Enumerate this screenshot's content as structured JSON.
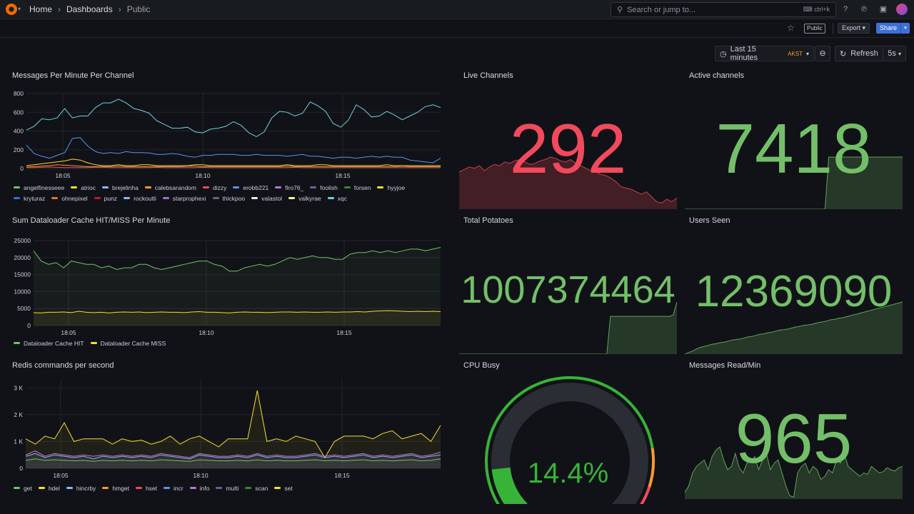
{
  "nav": {
    "breadcrumbs": [
      "Home",
      "Dashboards",
      "Public"
    ],
    "search_placeholder": "Search or jump to...",
    "search_shortcut": "ctrl+k"
  },
  "toolbar": {
    "public_badge": "Public",
    "export_label": "Export",
    "share_label": "Share"
  },
  "time": {
    "range": "Last 15 minutes",
    "tz": "AKST",
    "refresh_label": "Refresh",
    "interval": "5s"
  },
  "colors": {
    "green": "#73bf69",
    "red": "#f2495c",
    "yellow": "#fade2a",
    "blue": "#5794f2",
    "orange": "#ff9830",
    "purple": "#b877d9",
    "cyan": "#8ab8ff"
  },
  "panels": {
    "messages": {
      "title": "Messages Per Minute Per Channel",
      "legend": [
        {
          "name": "angelfinesseee",
          "color": "#73bf69"
        },
        {
          "name": "atrioc",
          "color": "#fade2a"
        },
        {
          "name": "brejelinha",
          "color": "#8ab8ff"
        },
        {
          "name": "calebsarandom",
          "color": "#ff9830"
        },
        {
          "name": "dizzy",
          "color": "#f2495c"
        },
        {
          "name": "erobb221",
          "color": "#5794f2"
        },
        {
          "name": "firo76_",
          "color": "#b877d9"
        },
        {
          "name": "foolish",
          "color": "#705da0"
        },
        {
          "name": "forsen",
          "color": "#37872d"
        },
        {
          "name": "hyyjoe",
          "color": "#fade2a"
        },
        {
          "name": "kryturaz",
          "color": "#3274d9"
        },
        {
          "name": "ohnepixel",
          "color": "#e0752d"
        },
        {
          "name": "punz",
          "color": "#c4162a"
        },
        {
          "name": "rockoutli",
          "color": "#8ab8ff"
        },
        {
          "name": "starprophexi",
          "color": "#a16ddb"
        },
        {
          "name": "thickpoo",
          "color": "#5f6b81"
        },
        {
          "name": "valastol",
          "color": "#e9e9f0"
        },
        {
          "name": "valkyrae",
          "color": "#fff899"
        },
        {
          "name": "xqc",
          "color": "#6ed0e0"
        }
      ]
    },
    "dataloader": {
      "title": "Sum Dataloader Cache HIT/MISS Per Minute",
      "legend": [
        {
          "name": "Dataloader Cache HIT",
          "color": "#73bf69"
        },
        {
          "name": "Dataloader Cache MISS",
          "color": "#fade2a"
        }
      ]
    },
    "redis": {
      "title": "Redis commands per second",
      "legend": [
        {
          "name": "get",
          "color": "#73bf69"
        },
        {
          "name": "hdel",
          "color": "#fade2a"
        },
        {
          "name": "hincrby",
          "color": "#8ab8ff"
        },
        {
          "name": "hmget",
          "color": "#ff9830"
        },
        {
          "name": "hset",
          "color": "#f2495c"
        },
        {
          "name": "incr",
          "color": "#5794f2"
        },
        {
          "name": "info",
          "color": "#b877d9"
        },
        {
          "name": "multi",
          "color": "#705da0"
        },
        {
          "name": "scan",
          "color": "#37872d"
        },
        {
          "name": "set",
          "color": "#fade2a"
        }
      ]
    },
    "live_channels": {
      "title": "Live Channels",
      "value": "292",
      "color": "#f2495c"
    },
    "active_channels": {
      "title": "Active channels",
      "value": "7418",
      "color": "#73bf69"
    },
    "total_potatoes": {
      "title": "Total Potatoes",
      "value": "1007374464",
      "color": "#73bf69"
    },
    "users_seen": {
      "title": "Users Seen",
      "value": "12369090",
      "color": "#73bf69"
    },
    "cpu_busy": {
      "title": "CPU Busy",
      "value": "14.4%",
      "percent": 14.4,
      "color": "#37b337"
    },
    "messages_read": {
      "title": "Messages Read/Min",
      "value": "965",
      "color": "#73bf69"
    }
  },
  "chart_data": [
    {
      "type": "line",
      "title": "Messages Per Minute Per Channel",
      "x_ticks": [
        "18:05",
        "18:10",
        "18:15"
      ],
      "y_ticks": [
        "0",
        "200",
        "400",
        "600",
        "800"
      ],
      "ylim": [
        0,
        800
      ],
      "series": [
        {
          "name": "xqc",
          "color": "#6ed0e0",
          "values": [
            410,
            450,
            530,
            520,
            540,
            640,
            540,
            560,
            560,
            650,
            700,
            700,
            740,
            700,
            640,
            620,
            590,
            510,
            470,
            430,
            430,
            440,
            390,
            380,
            420,
            430,
            450,
            500,
            460,
            380,
            340,
            390,
            540,
            610,
            600,
            560,
            590,
            710,
            670,
            610,
            480,
            440,
            520,
            680,
            630,
            550,
            560,
            610,
            570,
            520,
            560,
            600,
            660,
            680,
            650
          ]
        },
        {
          "name": "erobb221",
          "color": "#5794f2",
          "values": [
            250,
            160,
            130,
            110,
            140,
            170,
            320,
            330,
            240,
            180,
            160,
            170,
            160,
            180,
            170,
            170,
            165,
            150,
            150,
            160,
            150,
            130,
            120,
            140,
            140,
            150,
            150,
            150,
            140,
            140,
            150,
            140,
            140,
            140,
            130,
            140,
            150,
            130,
            130,
            120,
            110,
            120,
            120,
            110,
            120,
            130,
            120,
            130,
            120,
            120,
            90,
            80,
            70,
            60,
            110
          ]
        },
        {
          "name": "atrioc",
          "color": "#fade2a",
          "values": [
            30,
            40,
            50,
            60,
            70,
            80,
            100,
            90,
            60,
            40,
            30,
            30,
            40,
            30,
            30,
            40,
            40,
            30,
            30,
            30,
            30,
            30,
            40,
            40,
            30,
            30,
            30,
            30,
            30,
            30,
            30,
            30,
            30,
            30,
            40,
            30,
            30,
            30,
            40,
            40,
            30,
            30,
            30,
            30,
            30,
            30,
            30,
            40,
            30,
            30,
            30,
            30,
            30,
            30,
            30
          ]
        },
        {
          "name": "calebsarandom",
          "color": "#ff9830",
          "values": [
            15,
            20,
            25,
            30,
            40,
            35,
            30,
            25,
            20,
            20,
            20,
            20,
            25,
            20,
            20,
            20,
            20,
            20,
            20,
            20,
            20,
            25,
            25,
            20,
            20,
            20,
            20,
            20,
            20,
            20,
            20,
            20,
            20,
            20,
            25,
            20,
            20,
            20,
            20,
            20,
            20,
            20,
            20,
            20,
            20,
            20,
            20,
            20,
            20,
            25,
            20,
            20,
            20,
            20,
            20
          ]
        },
        {
          "name": "dizzy",
          "color": "#f2495c",
          "values": [
            10,
            10,
            12,
            15,
            12,
            10,
            10,
            10,
            10,
            12,
            12,
            10,
            10,
            10,
            10,
            10,
            10,
            12,
            10,
            10,
            10,
            10,
            10,
            12,
            10,
            10,
            10,
            10,
            10,
            10,
            10,
            10,
            10,
            10,
            10,
            12,
            10,
            10,
            10,
            10,
            10,
            10,
            10,
            10,
            10,
            10,
            10,
            10,
            10,
            10,
            10,
            10,
            10,
            10,
            10
          ]
        }
      ]
    },
    {
      "type": "area",
      "title": "Sum Dataloader Cache HIT/MISS Per Minute",
      "x_ticks": [
        "18:05",
        "18:10",
        "18:15"
      ],
      "y_ticks": [
        "0",
        "5000",
        "10000",
        "15000",
        "20000",
        "25000"
      ],
      "ylim": [
        0,
        25000
      ],
      "series": [
        {
          "name": "Dataloader Cache HIT",
          "color": "#73bf69",
          "values": [
            22000,
            19000,
            18000,
            18500,
            17000,
            19000,
            18500,
            18000,
            18000,
            17000,
            17500,
            16500,
            17000,
            17000,
            18000,
            18000,
            17000,
            16500,
            17000,
            17500,
            18000,
            18500,
            19000,
            19000,
            18000,
            17500,
            16000,
            16000,
            17000,
            17500,
            18000,
            17500,
            18000,
            19000,
            20000,
            19500,
            20000,
            20500,
            20000,
            20000,
            19500,
            19500,
            21000,
            21500,
            21500,
            22000,
            21500,
            22000,
            21500,
            22000,
            22500,
            22500,
            22000,
            22500,
            23000
          ]
        },
        {
          "name": "Dataloader Cache MISS",
          "color": "#fade2a",
          "values": [
            3800,
            3700,
            3900,
            3900,
            4000,
            3800,
            4200,
            3900,
            3800,
            3900,
            3700,
            3900,
            4000,
            3900,
            4000,
            3800,
            3900,
            4000,
            3900,
            3900,
            3800,
            4000,
            4100,
            3900,
            3900,
            3800,
            3700,
            3900,
            4000,
            3900,
            3900,
            3800,
            3900,
            4000,
            4000,
            3900,
            4000,
            3900,
            3900,
            4000,
            3900,
            4000,
            4000,
            4100,
            4000,
            4200,
            4300,
            4400,
            4300,
            4200,
            4100,
            4200,
            4100,
            4200,
            4100
          ]
        }
      ]
    },
    {
      "type": "area",
      "title": "Redis commands per second",
      "x_ticks": [
        "18:05",
        "18:10",
        "18:15"
      ],
      "y_ticks": [
        "0",
        "1 K",
        "2 K",
        "3 K"
      ],
      "ylim": [
        0,
        3300
      ],
      "series": [
        {
          "name": "hdel",
          "color": "#fade2a",
          "values": [
            1100,
            900,
            1200,
            1100,
            1700,
            1000,
            1100,
            1100,
            1100,
            900,
            1100,
            1000,
            1050,
            900,
            1000,
            1200,
            900,
            1100,
            1200,
            1000,
            800,
            1100,
            1100,
            1100,
            2900,
            1000,
            1100,
            1000,
            1200,
            1100,
            1000,
            400,
            1000,
            1200,
            1200,
            1200,
            1100,
            1300,
            1400,
            1100,
            1200,
            1300,
            1000,
            1600
          ]
        },
        {
          "name": "hincrby",
          "color": "#8ab8ff",
          "values": [
            450,
            550,
            400,
            500,
            450,
            400,
            450,
            350,
            450,
            400,
            450,
            400,
            450,
            400,
            500,
            450,
            400,
            350,
            500,
            450,
            400,
            400,
            450,
            400,
            500,
            400,
            450,
            400,
            400,
            450,
            500,
            400,
            450,
            400,
            450,
            500,
            400,
            450,
            400,
            450,
            500,
            400,
            450,
            500
          ]
        },
        {
          "name": "info",
          "color": "#b877d9",
          "values": [
            500,
            650,
            450,
            550,
            500,
            450,
            500,
            450,
            500,
            450,
            500,
            450,
            500,
            450,
            550,
            500,
            450,
            400,
            550,
            500,
            450,
            450,
            500,
            450,
            550,
            450,
            500,
            450,
            450,
            500,
            550,
            450,
            500,
            450,
            500,
            550,
            450,
            500,
            450,
            500,
            550,
            450,
            500,
            600
          ]
        },
        {
          "name": "get",
          "color": "#73bf69",
          "values": [
            300,
            350,
            300,
            320,
            300,
            280,
            300,
            260,
            300,
            280,
            300,
            280,
            300,
            280,
            320,
            300,
            280,
            260,
            320,
            300,
            280,
            280,
            300,
            280,
            320,
            280,
            300,
            280,
            280,
            300,
            320,
            280,
            300,
            280,
            300,
            320,
            280,
            300,
            280,
            300,
            320,
            280,
            300,
            350
          ]
        }
      ]
    },
    {
      "type": "area",
      "title": "Live Channels",
      "values": [
        30,
        32,
        34,
        33,
        35,
        31,
        34,
        36,
        35,
        38,
        37,
        39,
        40,
        38,
        36,
        37,
        39,
        40,
        42,
        41,
        39,
        38,
        40,
        37,
        35,
        33,
        31,
        30,
        28,
        27,
        25,
        22,
        18,
        17,
        16,
        14,
        12,
        14,
        10,
        6,
        5,
        8,
        6,
        9
      ]
    },
    {
      "type": "area",
      "title": "Active channels",
      "values": [
        0,
        0,
        0,
        0,
        0,
        0,
        0,
        0,
        0,
        0,
        0,
        0,
        0,
        0,
        0,
        0,
        0,
        0,
        0,
        0,
        0,
        0,
        0,
        0,
        0,
        0,
        0,
        0,
        0,
        0,
        0,
        0,
        0,
        0,
        0,
        0,
        0,
        0,
        0,
        100,
        100,
        100,
        100,
        100,
        100,
        100,
        100,
        100,
        100,
        100,
        100,
        100,
        100,
        100,
        100,
        100,
        100,
        100,
        100,
        100
      ]
    },
    {
      "type": "area",
      "title": "Total Potatoes",
      "values": [
        0,
        0,
        0,
        0,
        0,
        0,
        0,
        0,
        0,
        0,
        0,
        0,
        0,
        0,
        0,
        0,
        0,
        0,
        0,
        0,
        0,
        0,
        0,
        0,
        0,
        0,
        0,
        0,
        0,
        0,
        0,
        0,
        0,
        0,
        0,
        0,
        0,
        0,
        0,
        0,
        0,
        58,
        58,
        58,
        58,
        58,
        58,
        58,
        58,
        58,
        58,
        58,
        58,
        58,
        58,
        58,
        58,
        58,
        60,
        80
      ]
    },
    {
      "type": "area",
      "title": "Users Seen",
      "values": [
        0,
        3,
        6,
        10,
        13,
        15,
        17,
        19,
        20,
        22,
        23,
        25,
        27,
        28,
        29,
        31,
        33,
        34,
        36,
        38,
        39,
        41,
        42,
        44,
        46,
        47,
        48,
        50,
        52,
        53,
        55,
        56,
        57,
        59,
        61,
        62,
        64,
        66,
        67,
        69,
        70,
        72,
        74,
        76,
        78,
        80,
        82,
        84,
        86,
        88,
        90,
        92,
        94,
        96,
        98,
        100
      ]
    },
    {
      "type": "area",
      "title": "Messages Read/Min",
      "values": [
        10,
        20,
        40,
        50,
        55,
        60,
        45,
        65,
        75,
        80,
        60,
        45,
        50,
        70,
        48,
        40,
        55,
        58,
        65,
        45,
        60,
        70,
        45,
        55,
        60,
        40,
        20,
        5,
        3,
        40,
        50,
        55,
        40,
        50,
        45,
        30,
        35,
        45,
        40,
        60,
        55,
        70,
        50,
        45,
        40,
        35,
        40,
        38,
        50,
        45,
        40,
        42,
        48,
        45,
        43,
        48,
        50
      ]
    }
  ]
}
